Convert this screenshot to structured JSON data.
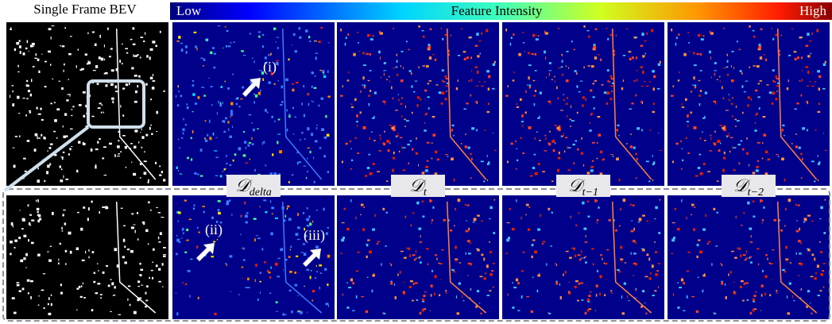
{
  "header": {
    "left_label": "Single Frame BEV"
  },
  "colorbar": {
    "low": "Low",
    "title": "Feature Intensity",
    "high": "High"
  },
  "panel_labels": [
    {
      "symbol": "𝒟",
      "subscript": "delta"
    },
    {
      "symbol": "𝒟",
      "subscript": "t"
    },
    {
      "symbol": "𝒟",
      "subscript": "t−1"
    },
    {
      "symbol": "𝒟",
      "subscript": "t−2"
    }
  ],
  "annotations": [
    "(i)",
    "(ii)",
    "(iii)"
  ]
}
